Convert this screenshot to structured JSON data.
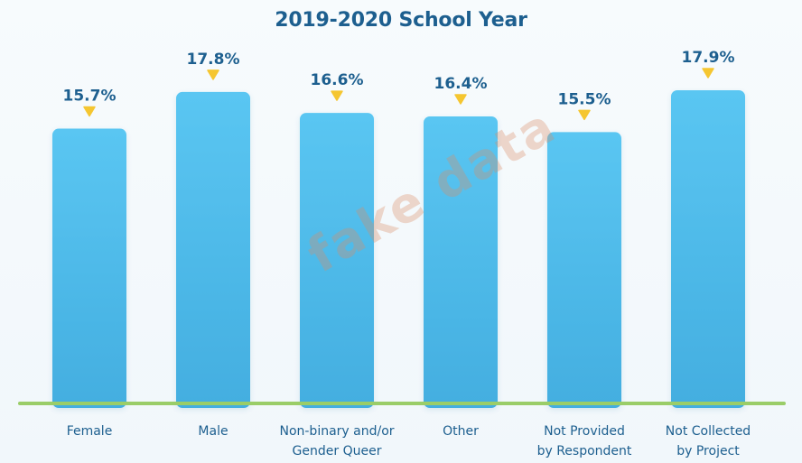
{
  "chart_data": {
    "type": "bar",
    "title": "2019-2020 School Year",
    "categories": [
      [
        "Female"
      ],
      [
        "Male"
      ],
      [
        "Non-binary and/or",
        "Gender Queer"
      ],
      [
        "Other"
      ],
      [
        "Not Provided",
        "by Respondent"
      ],
      [
        "Not Collected",
        "by Project"
      ]
    ],
    "values": [
      15.7,
      17.8,
      16.6,
      16.4,
      15.5,
      17.9
    ],
    "value_labels": [
      "15.7%",
      "17.8%",
      "16.6%",
      "16.4%",
      "15.5%",
      "17.9%"
    ],
    "ylim": [
      0,
      17.9
    ],
    "grid": false,
    "legend": "none"
  },
  "colors": {
    "bar_top": "#5ac6f2",
    "bar_bottom": "#43aee0",
    "marker": "#f5c631",
    "baseline": "#9acd68",
    "text": "#1d5f8f"
  },
  "watermark": "fake data"
}
